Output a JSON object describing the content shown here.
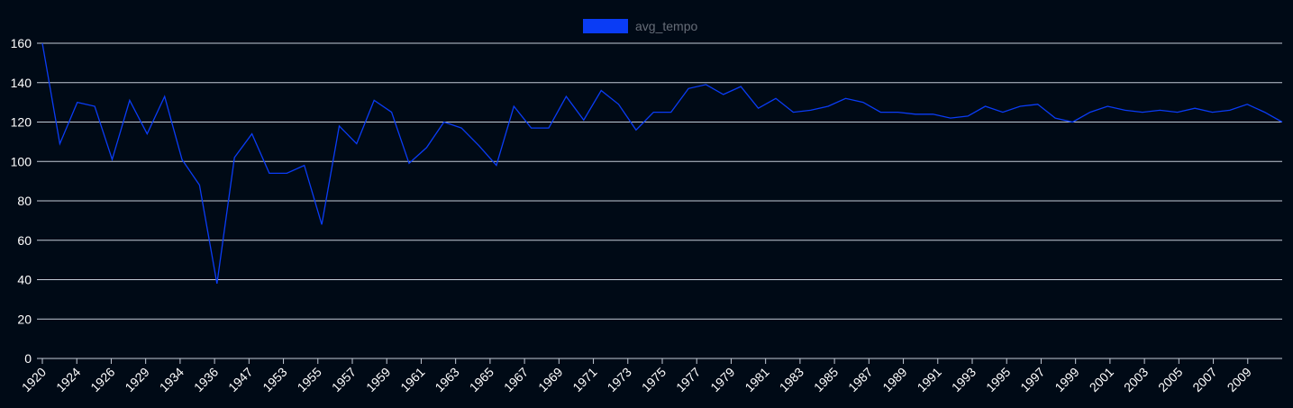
{
  "chart_data": {
    "type": "line",
    "legend": {
      "position": "top-center",
      "entries": [
        "avg_tempo"
      ]
    },
    "x_tick_labels": [
      "1920",
      "1924",
      "1926",
      "1929",
      "1934",
      "1936",
      "1947",
      "1953",
      "1955",
      "1957",
      "1959",
      "1961",
      "1963",
      "1965",
      "1967",
      "1969",
      "1971",
      "1973",
      "1975",
      "1977",
      "1979",
      "1981",
      "1983",
      "1985",
      "1987",
      "1989",
      "1991",
      "1993",
      "1995",
      "1997",
      "1999",
      "2001",
      "2003",
      "2005",
      "2007",
      "2009"
    ],
    "y_ticks": [
      0,
      20,
      40,
      60,
      80,
      100,
      120,
      140,
      160
    ],
    "ylim": [
      0,
      160
    ],
    "grid": true,
    "series": [
      {
        "name": "avg_tempo",
        "color": "#0a3cf5",
        "values": [
          160,
          109,
          130,
          128,
          101,
          131,
          114,
          133,
          101,
          88,
          38,
          102,
          114,
          94,
          94,
          98,
          68,
          118,
          109,
          131,
          125,
          99,
          107,
          120,
          117,
          108,
          98,
          128,
          117,
          117,
          133,
          121,
          136,
          129,
          116,
          125,
          125,
          137,
          139,
          134,
          138,
          127,
          132,
          125,
          126,
          128,
          132,
          130,
          125,
          125,
          124,
          124,
          122,
          123,
          128,
          125,
          128,
          129,
          122,
          120,
          125,
          128,
          126,
          125,
          126,
          125,
          127,
          125,
          126,
          129,
          125,
          120
        ]
      }
    ]
  }
}
